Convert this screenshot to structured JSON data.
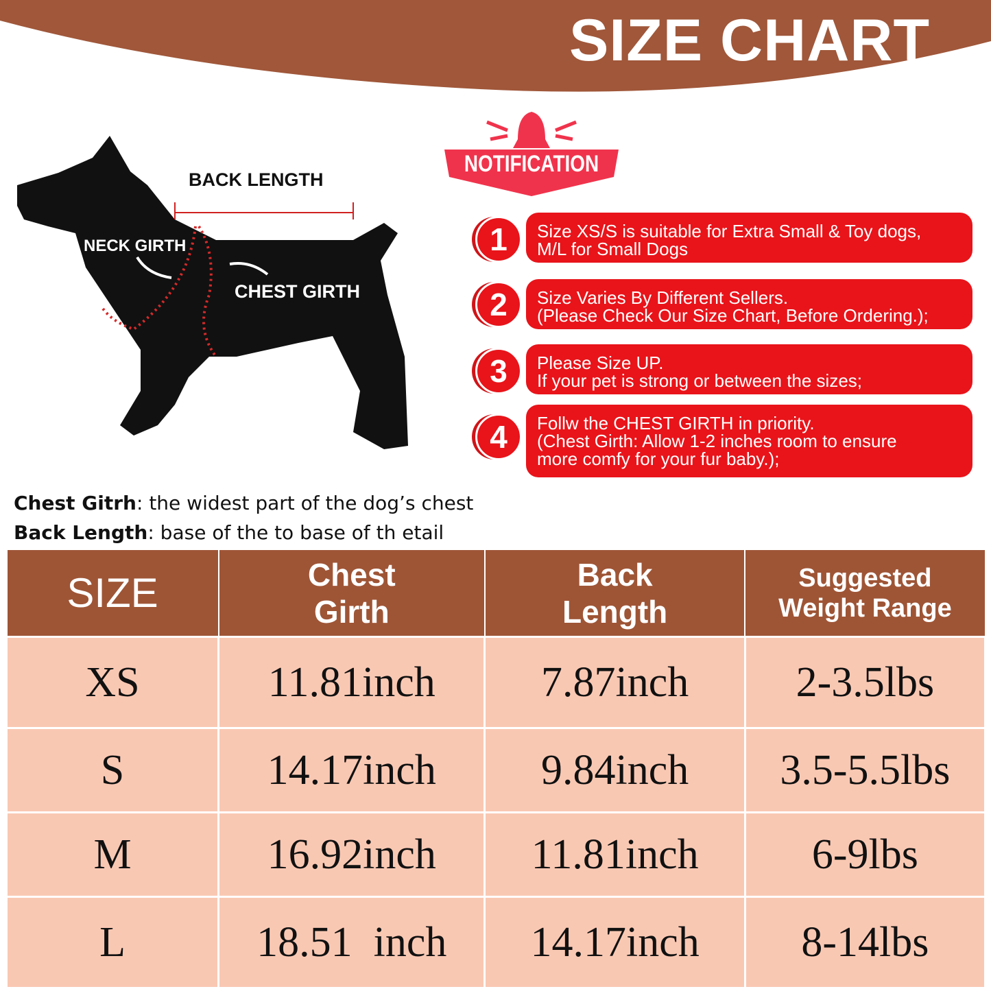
{
  "header": {
    "title": "SIZE CHART",
    "banner_color": "#a0573a"
  },
  "diagram": {
    "back_length": "BACK LENGTH",
    "neck_girth": "NECK GIRTH",
    "chest_girth": "CHEST GIRTH"
  },
  "notification": {
    "badge": "NOTIFICATION",
    "badge_color": "#f0334c",
    "tips": [
      {
        "num": "1",
        "lines": [
          "Size XS/S is suitable for Extra Small & Toy dogs,",
          "M/L for Small Dogs"
        ]
      },
      {
        "num": "2",
        "lines": [
          "Size Varies By Different Sellers.",
          "(Please Check Our Size Chart, Before Ordering.);"
        ]
      },
      {
        "num": "3",
        "lines": [
          "Please Size UP.",
          "If your pet is strong or between the sizes;"
        ]
      },
      {
        "num": "4",
        "lines": [
          "Follw the CHEST GIRTH in priority.",
          "(Chest Girth: Allow 1-2 inches room to ensure",
          "more comfy for your fur baby.);"
        ]
      }
    ]
  },
  "definitions": [
    {
      "term": "Chest Gitrh",
      "text": ": the widest part of the dog’s chest"
    },
    {
      "term": "Back Length",
      "text": ": base of the to base of th etail"
    }
  ],
  "table": {
    "headers": [
      [
        "SIZE"
      ],
      [
        "Chest",
        "Girth"
      ],
      [
        "Back",
        "Length"
      ],
      [
        "Suggested",
        "Weight Range"
      ]
    ],
    "rows": [
      [
        "XS",
        "11.81inch",
        "7.87inch",
        "2-3.5lbs"
      ],
      [
        "S",
        "14.17inch",
        "9.84inch",
        "3.5-5.5lbs"
      ],
      [
        "M",
        "16.92inch",
        "11.81inch",
        "6-9lbs"
      ],
      [
        "L",
        "18.51  inch",
        "14.17inch",
        "8-14lbs"
      ]
    ],
    "header_color": "#9e5536",
    "row_color": "#f9c8b3"
  }
}
